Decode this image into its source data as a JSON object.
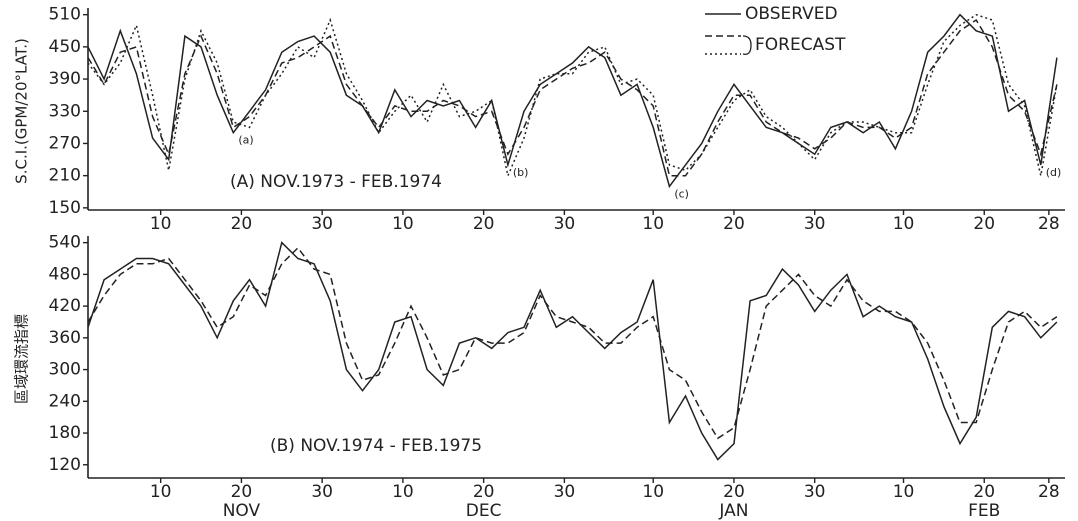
{
  "chart_data": [
    {
      "type": "line",
      "title": "(A) NOV.1973 - FEB.1974",
      "ylabel": "S.C.I.(GPM/20°LAT.)",
      "x": [
        1,
        3,
        5,
        7,
        9,
        11,
        13,
        15,
        17,
        19,
        21,
        23,
        25,
        27,
        29,
        31,
        33,
        35,
        37,
        39,
        41,
        43,
        45,
        47,
        49,
        51,
        53,
        55,
        57,
        59,
        61,
        63,
        65,
        67,
        69,
        71,
        73,
        75,
        77,
        79,
        81,
        83,
        85,
        87,
        89,
        91,
        93,
        95,
        97,
        99,
        101,
        103,
        105,
        107,
        109,
        111,
        113,
        115,
        117,
        119,
        121
      ],
      "series": [
        {
          "name": "OBSERVED",
          "color": "#222222",
          "linestyle": "solid",
          "values": [
            450,
            390,
            480,
            400,
            280,
            240,
            470,
            450,
            360,
            290,
            330,
            370,
            440,
            460,
            470,
            440,
            360,
            340,
            290,
            370,
            320,
            350,
            340,
            350,
            300,
            350,
            230,
            330,
            380,
            400,
            420,
            450,
            430,
            360,
            380,
            300,
            190,
            230,
            270,
            330,
            380,
            340,
            300,
            290,
            270,
            250,
            300,
            310,
            290,
            310,
            260,
            330,
            440,
            470,
            510,
            480,
            470,
            330,
            350,
            230,
            430
          ]
        },
        {
          "name": "FORECAST",
          "color": "#222222",
          "linestyle": "dashed",
          "values": [
            430,
            380,
            440,
            450,
            320,
            250,
            400,
            470,
            400,
            300,
            320,
            360,
            420,
            430,
            450,
            470,
            380,
            340,
            300,
            340,
            330,
            330,
            350,
            340,
            320,
            330,
            250,
            300,
            370,
            390,
            410,
            420,
            440,
            390,
            370,
            340,
            210,
            210,
            250,
            310,
            360,
            360,
            310,
            290,
            280,
            260,
            280,
            310,
            300,
            300,
            280,
            300,
            400,
            440,
            480,
            500,
            450,
            360,
            330,
            250,
            380
          ]
        },
        {
          "color": "#222222",
          "linestyle": "dotted",
          "values": [
            420,
            380,
            420,
            490,
            360,
            220,
            390,
            480,
            420,
            310,
            300,
            360,
            400,
            450,
            430,
            500,
            400,
            350,
            290,
            330,
            360,
            310,
            380,
            320,
            330,
            350,
            210,
            280,
            390,
            400,
            400,
            440,
            450,
            380,
            390,
            360,
            230,
            220,
            250,
            300,
            350,
            370,
            320,
            300,
            270,
            240,
            290,
            310,
            310,
            300,
            290,
            290,
            380,
            460,
            490,
            510,
            500,
            380,
            340,
            210,
            380
          ]
        }
      ],
      "xlim": [
        1,
        122
      ],
      "xticks": [
        10,
        20,
        30,
        {
          "value": 40,
          "label": "10"
        },
        {
          "value": 50,
          "label": "20"
        },
        {
          "value": 60,
          "label": "30"
        },
        {
          "value": 71,
          "label": "10"
        },
        {
          "value": 81,
          "label": "20"
        },
        {
          "value": 91,
          "label": "30"
        },
        {
          "value": 102,
          "label": "10"
        },
        {
          "value": 112,
          "label": "20"
        },
        {
          "value": 120,
          "label": "28"
        }
      ],
      "ylim": [
        146,
        515
      ],
      "yticks": [
        150,
        210,
        270,
        330,
        390,
        450,
        510
      ],
      "annotations": [
        {
          "text": "(a)",
          "x": 19
        },
        {
          "text": "(b)",
          "x": 53
        },
        {
          "text": "(c)",
          "x": 73
        },
        {
          "text": "(d)",
          "x": 119
        }
      ]
    },
    {
      "type": "line",
      "title": "(B) NOV.1974 - FEB.1975",
      "ylabel": "區域環流指標",
      "x": [
        1,
        3,
        5,
        7,
        9,
        11,
        13,
        15,
        17,
        19,
        21,
        23,
        25,
        27,
        29,
        31,
        33,
        35,
        37,
        39,
        41,
        43,
        45,
        47,
        49,
        51,
        53,
        55,
        57,
        59,
        61,
        63,
        65,
        67,
        69,
        71,
        73,
        75,
        77,
        79,
        81,
        83,
        85,
        87,
        89,
        91,
        93,
        95,
        97,
        99,
        101,
        103,
        105,
        107,
        109,
        111,
        113,
        115,
        117,
        119,
        121
      ],
      "series": [
        {
          "color": "#222222",
          "linestyle": "solid",
          "values": [
            380,
            470,
            490,
            510,
            510,
            500,
            460,
            420,
            360,
            430,
            470,
            420,
            540,
            510,
            500,
            430,
            300,
            260,
            300,
            390,
            400,
            300,
            270,
            350,
            360,
            340,
            370,
            380,
            450,
            380,
            400,
            370,
            340,
            370,
            390,
            470,
            200,
            250,
            180,
            130,
            160,
            430,
            440,
            490,
            460,
            410,
            450,
            480,
            400,
            420,
            400,
            390,
            320,
            230,
            160,
            210,
            380,
            410,
            400,
            360,
            390
          ]
        },
        {
          "color": "#222222",
          "linestyle": "dashed",
          "values": [
            390,
            440,
            480,
            500,
            500,
            510,
            470,
            430,
            380,
            400,
            460,
            440,
            500,
            530,
            490,
            480,
            350,
            280,
            290,
            350,
            420,
            360,
            290,
            300,
            360,
            350,
            350,
            370,
            440,
            400,
            390,
            380,
            350,
            350,
            380,
            400,
            300,
            280,
            220,
            170,
            190,
            300,
            420,
            450,
            480,
            440,
            420,
            470,
            430,
            410,
            410,
            390,
            350,
            280,
            200,
            200,
            300,
            390,
            410,
            380,
            400
          ]
        }
      ],
      "xlim": [
        1,
        122
      ],
      "xticks": [
        10,
        20,
        30,
        {
          "value": 40,
          "label": "10"
        },
        {
          "value": 50,
          "label": "20"
        },
        {
          "value": 60,
          "label": "30"
        },
        {
          "value": 71,
          "label": "10"
        },
        {
          "value": 81,
          "label": "20"
        },
        {
          "value": 91,
          "label": "30"
        },
        {
          "value": 102,
          "label": "10"
        },
        {
          "value": 112,
          "label": "20"
        },
        {
          "value": 120,
          "label": "28"
        }
      ],
      "months": [
        "NOV",
        "DEC",
        "JAN",
        "FEB"
      ],
      "ylim": [
        95,
        545
      ],
      "yticks": [
        120,
        180,
        240,
        300,
        360,
        420,
        480,
        540
      ]
    }
  ]
}
